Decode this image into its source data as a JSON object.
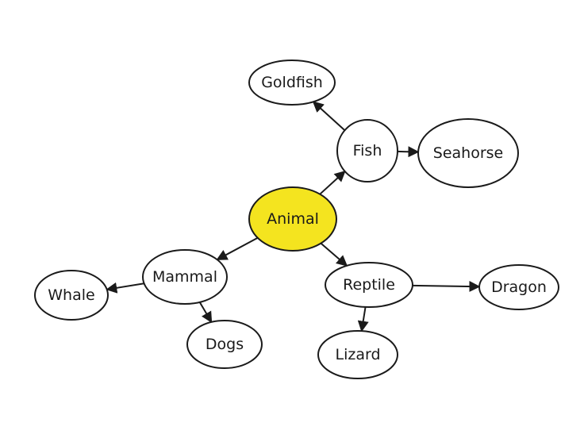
{
  "diagram": {
    "type": "concept-map",
    "colors": {
      "root_fill": "#f4e41f",
      "node_fill": "#ffffff",
      "stroke": "#1a1a1a"
    },
    "nodes": [
      {
        "id": "animal",
        "label": "Animal",
        "root": true
      },
      {
        "id": "fish",
        "label": "Fish"
      },
      {
        "id": "goldfish",
        "label": "Goldfish"
      },
      {
        "id": "seahorse",
        "label": "Seahorse"
      },
      {
        "id": "mammal",
        "label": "Mammal"
      },
      {
        "id": "whale",
        "label": "Whale"
      },
      {
        "id": "dogs",
        "label": "Dogs"
      },
      {
        "id": "reptile",
        "label": "Reptile"
      },
      {
        "id": "dragon",
        "label": "Dragon"
      },
      {
        "id": "lizard",
        "label": "Lizard"
      }
    ],
    "edges": [
      {
        "from": "animal",
        "to": "fish"
      },
      {
        "from": "animal",
        "to": "mammal"
      },
      {
        "from": "animal",
        "to": "reptile"
      },
      {
        "from": "fish",
        "to": "goldfish"
      },
      {
        "from": "fish",
        "to": "seahorse"
      },
      {
        "from": "mammal",
        "to": "whale"
      },
      {
        "from": "mammal",
        "to": "dogs"
      },
      {
        "from": "reptile",
        "to": "dragon"
      },
      {
        "from": "reptile",
        "to": "lizard"
      }
    ]
  }
}
